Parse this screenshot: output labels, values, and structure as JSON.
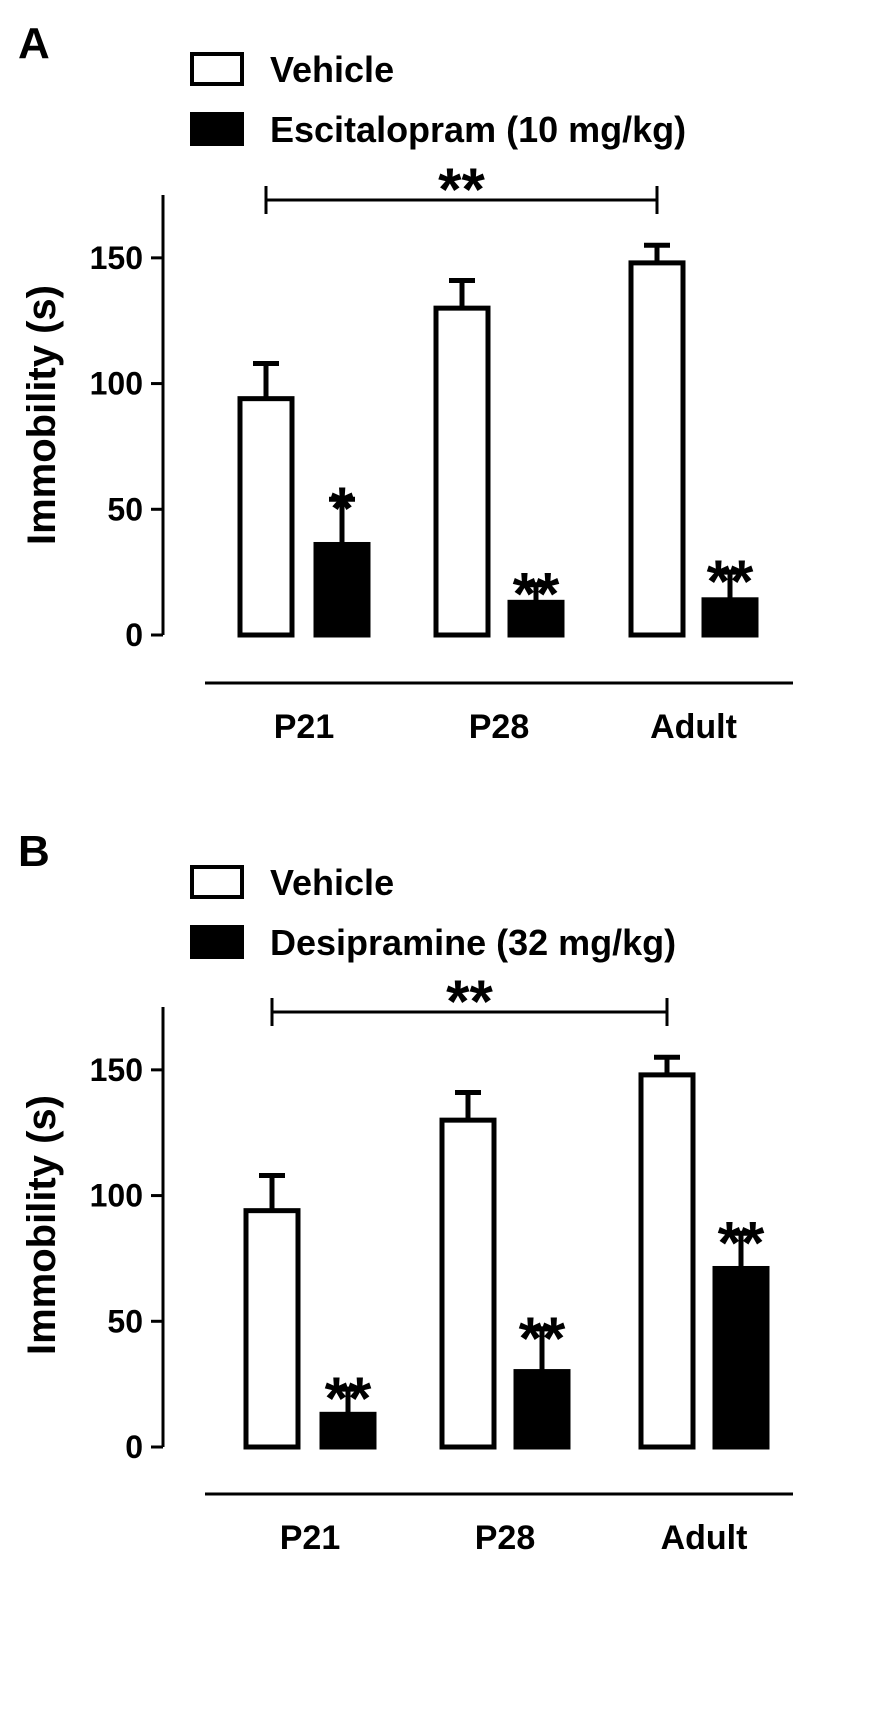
{
  "chart_data": [
    {
      "type": "bar",
      "panel_label": "A",
      "categories": [
        "P21",
        "P28",
        "Adult"
      ],
      "ylabel": "Immobility (s)",
      "ylim": [
        0,
        175
      ],
      "yticks": [
        "0",
        "50",
        "100",
        "150"
      ],
      "legend_position": "top-left",
      "series": [
        {
          "name": "Vehicle",
          "color": "#ffffff",
          "values": [
            94,
            130,
            148
          ],
          "errors": [
            14,
            11,
            7
          ],
          "markers": [
            "",
            "",
            ""
          ]
        },
        {
          "name": "Escitalopram (10 mg/kg)",
          "color": "#000000",
          "values": [
            36,
            13,
            14
          ],
          "errors": [
            18,
            7,
            11
          ],
          "markers": [
            "*",
            "**",
            "**"
          ]
        }
      ],
      "bracket": {
        "from": "P21",
        "to": "Adult",
        "label": "**"
      }
    },
    {
      "type": "bar",
      "panel_label": "B",
      "categories": [
        "P21",
        "P28",
        "Adult"
      ],
      "ylabel": "Immobility (s)",
      "ylim": [
        0,
        175
      ],
      "yticks": [
        "0",
        "50",
        "100",
        "150"
      ],
      "legend_position": "top-left",
      "series": [
        {
          "name": "Vehicle",
          "color": "#ffffff",
          "values": [
            94,
            130,
            148
          ],
          "errors": [
            14,
            11,
            7
          ],
          "markers": [
            "",
            "",
            ""
          ]
        },
        {
          "name": "Desipramine (32 mg/kg)",
          "color": "#000000",
          "values": [
            13,
            30,
            71
          ],
          "errors": [
            10,
            17,
            14
          ],
          "markers": [
            "**",
            "**",
            "**"
          ]
        }
      ],
      "bracket": {
        "from": "P21",
        "to": "Adult",
        "label": "**"
      }
    }
  ]
}
